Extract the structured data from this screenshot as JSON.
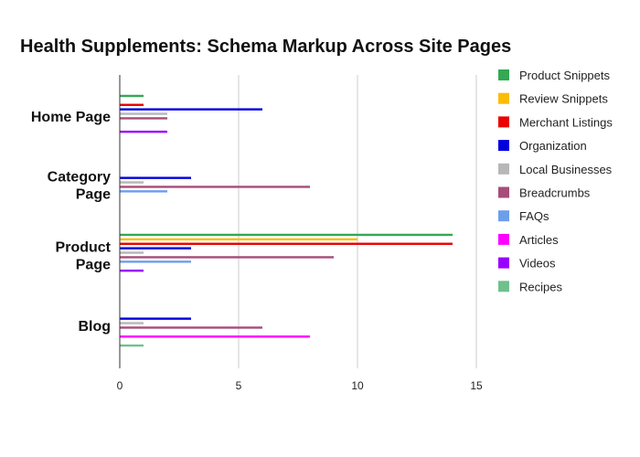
{
  "chart_data": {
    "type": "bar",
    "orientation": "horizontal",
    "title": "Health Supplements: Schema Markup Across Site Pages",
    "categories": [
      "Home Page",
      "Category Page",
      "Product Page",
      "Blog"
    ],
    "xlim": [
      0,
      15
    ],
    "xticks": [
      0,
      5,
      10,
      15
    ],
    "grid": true,
    "legend_position": "right",
    "series": [
      {
        "name": "Product Snippets",
        "color": "#34a853",
        "values": [
          1,
          0,
          14,
          0
        ]
      },
      {
        "name": "Review Snippets",
        "color": "#fbbc04",
        "values": [
          0,
          0,
          10,
          0
        ]
      },
      {
        "name": "Merchant Listings",
        "color": "#ea0000",
        "values": [
          1,
          0,
          14,
          0
        ]
      },
      {
        "name": "Organization",
        "color": "#0000dd",
        "values": [
          6,
          3,
          3,
          3
        ]
      },
      {
        "name": "Local Businesses",
        "color": "#b7b7b7",
        "values": [
          2,
          1,
          1,
          1
        ]
      },
      {
        "name": "Breadcrumbs",
        "color": "#a64d79",
        "values": [
          2,
          8,
          9,
          6
        ]
      },
      {
        "name": "FAQs",
        "color": "#6d9eeb",
        "values": [
          0,
          2,
          3,
          0
        ]
      },
      {
        "name": "Articles",
        "color": "#ff00ff",
        "values": [
          0,
          0,
          0,
          8
        ]
      },
      {
        "name": "Videos",
        "color": "#9900ff",
        "values": [
          2,
          0,
          1,
          0
        ]
      },
      {
        "name": "Recipes",
        "color": "#6fc18c",
        "values": [
          0,
          0,
          0,
          1
        ]
      }
    ]
  }
}
